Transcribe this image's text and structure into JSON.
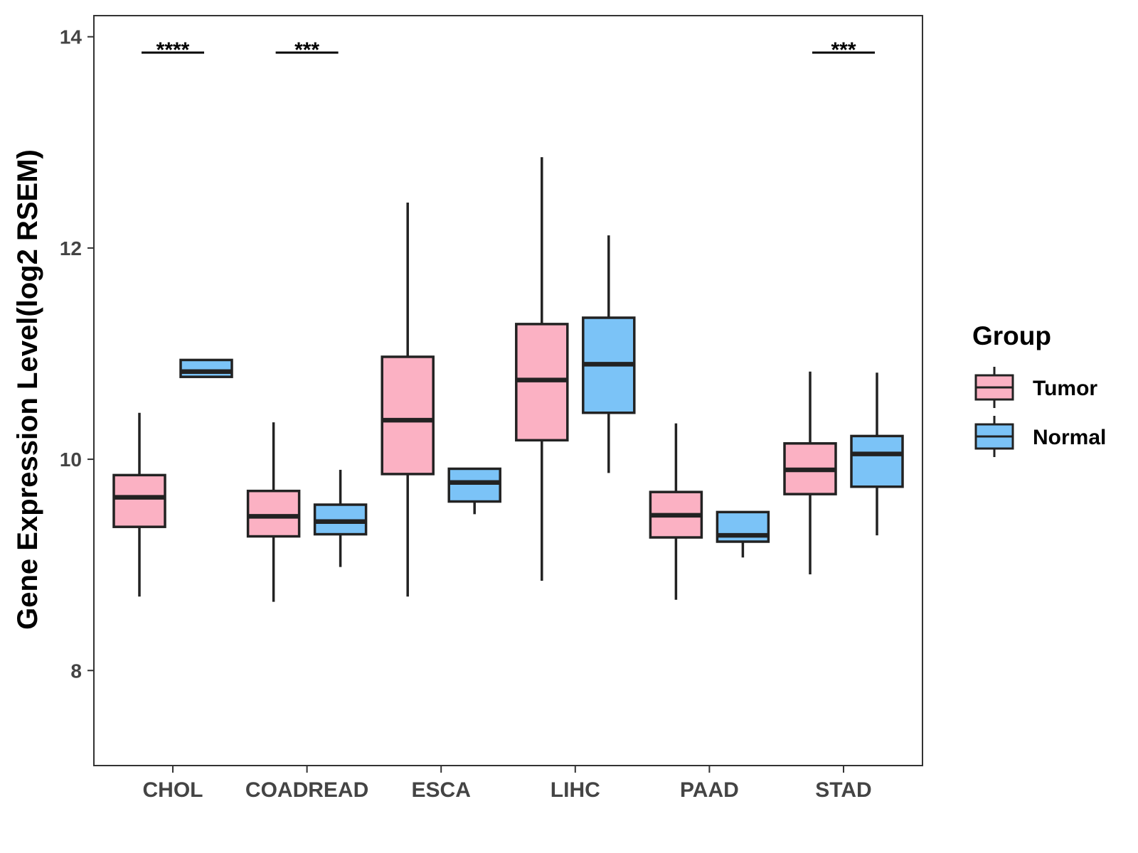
{
  "chart_data": {
    "type": "boxplot",
    "title": "",
    "xlabel": "",
    "ylabel": "Gene Expression Level(log2 RSEM)",
    "ylim": [
      7.1,
      14.2
    ],
    "yticks": [
      8,
      10,
      12,
      14
    ],
    "categories": [
      "CHOL",
      "COADREAD",
      "ESCA",
      "LIHC",
      "PAAD",
      "STAD"
    ],
    "legend": {
      "title": "Group",
      "position": "right"
    },
    "series": [
      {
        "name": "Tumor",
        "color": "#FBB1C3",
        "boxes": [
          {
            "category": "CHOL",
            "min": 8.7,
            "q1": 9.36,
            "median": 9.64,
            "q3": 9.85,
            "max": 10.44
          },
          {
            "category": "COADREAD",
            "min": 8.65,
            "q1": 9.27,
            "median": 9.46,
            "q3": 9.7,
            "max": 10.35
          },
          {
            "category": "ESCA",
            "min": 8.7,
            "q1": 9.86,
            "median": 10.37,
            "q3": 10.97,
            "max": 12.43
          },
          {
            "category": "LIHC",
            "min": 8.85,
            "q1": 10.18,
            "median": 10.75,
            "q3": 11.28,
            "max": 12.86
          },
          {
            "category": "PAAD",
            "min": 8.67,
            "q1": 9.26,
            "median": 9.47,
            "q3": 9.69,
            "max": 10.34
          },
          {
            "category": "STAD",
            "min": 8.91,
            "q1": 9.67,
            "median": 9.9,
            "q3": 10.15,
            "max": 10.83
          }
        ]
      },
      {
        "name": "Normal",
        "color": "#7BC3F7",
        "boxes": [
          {
            "category": "CHOL",
            "min": 10.78,
            "q1": 10.78,
            "median": 10.83,
            "q3": 10.94,
            "max": 10.94
          },
          {
            "category": "COADREAD",
            "min": 8.98,
            "q1": 9.29,
            "median": 9.41,
            "q3": 9.57,
            "max": 9.9
          },
          {
            "category": "ESCA",
            "min": 9.48,
            "q1": 9.6,
            "median": 9.78,
            "q3": 9.91,
            "max": 9.91
          },
          {
            "category": "LIHC",
            "min": 9.87,
            "q1": 10.44,
            "median": 10.9,
            "q3": 11.34,
            "max": 12.12
          },
          {
            "category": "PAAD",
            "min": 9.07,
            "q1": 9.22,
            "median": 9.28,
            "q3": 9.5,
            "max": 9.5
          },
          {
            "category": "STAD",
            "min": 9.28,
            "q1": 9.74,
            "median": 10.05,
            "q3": 10.22,
            "max": 10.82
          }
        ]
      }
    ],
    "annotations": [
      {
        "category": "CHOL",
        "text": "****",
        "y": 13.85
      },
      {
        "category": "COADREAD",
        "text": "***",
        "y": 13.85
      },
      {
        "category": "STAD",
        "text": "***",
        "y": 13.85
      }
    ]
  },
  "colors": {
    "tumor_fill": "#FBB1C3",
    "normal_fill": "#7BC3F7",
    "outline": "#222222",
    "axis_text": "#444444"
  }
}
